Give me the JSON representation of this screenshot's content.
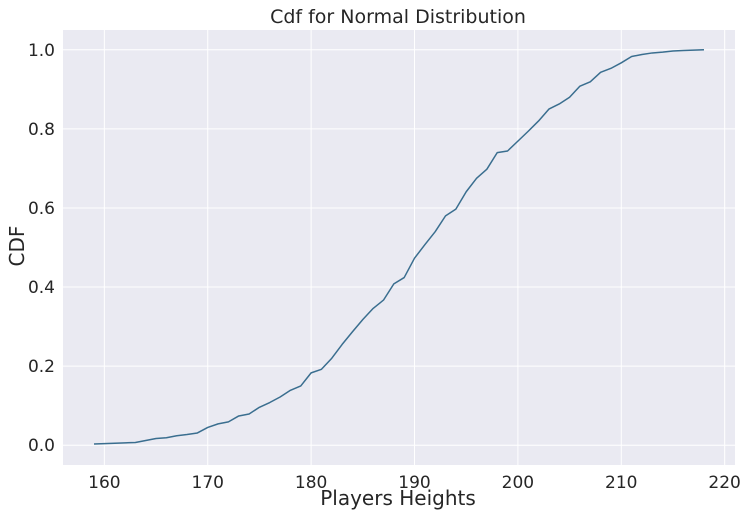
{
  "chart_data": {
    "type": "line",
    "title": "Cdf for Normal Distribution",
    "xlabel": "Players Heights",
    "ylabel": "CDF",
    "xlim": [
      156,
      221
    ],
    "ylim": [
      -0.05,
      1.05
    ],
    "xticks": [
      160,
      170,
      180,
      190,
      200,
      210,
      220
    ],
    "yticks": [
      0.0,
      0.2,
      0.4,
      0.6,
      0.8,
      1.0
    ],
    "grid": true,
    "background_color": "#eaeaf2",
    "line_color": "#3a6e8f",
    "series": [
      {
        "x": [
          159,
          160,
          161,
          162,
          163,
          164,
          165,
          166,
          167,
          168,
          169,
          170,
          171,
          172,
          173,
          174,
          175,
          176,
          177,
          178,
          179,
          180,
          181,
          182,
          183,
          184,
          185,
          186,
          187,
          188,
          189,
          190,
          191,
          192,
          193,
          194,
          195,
          196,
          197,
          198,
          199,
          200,
          201,
          202,
          203,
          204,
          205,
          206,
          207,
          208,
          209,
          210,
          211,
          212,
          213,
          214,
          215,
          216,
          217,
          218
        ],
        "y": [
          0.003,
          0.004,
          0.005,
          0.006,
          0.007,
          0.012,
          0.017,
          0.019,
          0.024,
          0.027,
          0.031,
          0.045,
          0.054,
          0.059,
          0.074,
          0.079,
          0.096,
          0.108,
          0.122,
          0.139,
          0.15,
          0.183,
          0.192,
          0.22,
          0.255,
          0.287,
          0.318,
          0.346,
          0.367,
          0.408,
          0.424,
          0.473,
          0.507,
          0.54,
          0.58,
          0.597,
          0.641,
          0.675,
          0.698,
          0.74,
          0.744,
          0.769,
          0.794,
          0.82,
          0.85,
          0.863,
          0.88,
          0.908,
          0.919,
          0.943,
          0.953,
          0.967,
          0.983,
          0.988,
          0.992,
          0.994,
          0.997,
          0.998,
          0.999,
          1.0
        ]
      }
    ]
  }
}
